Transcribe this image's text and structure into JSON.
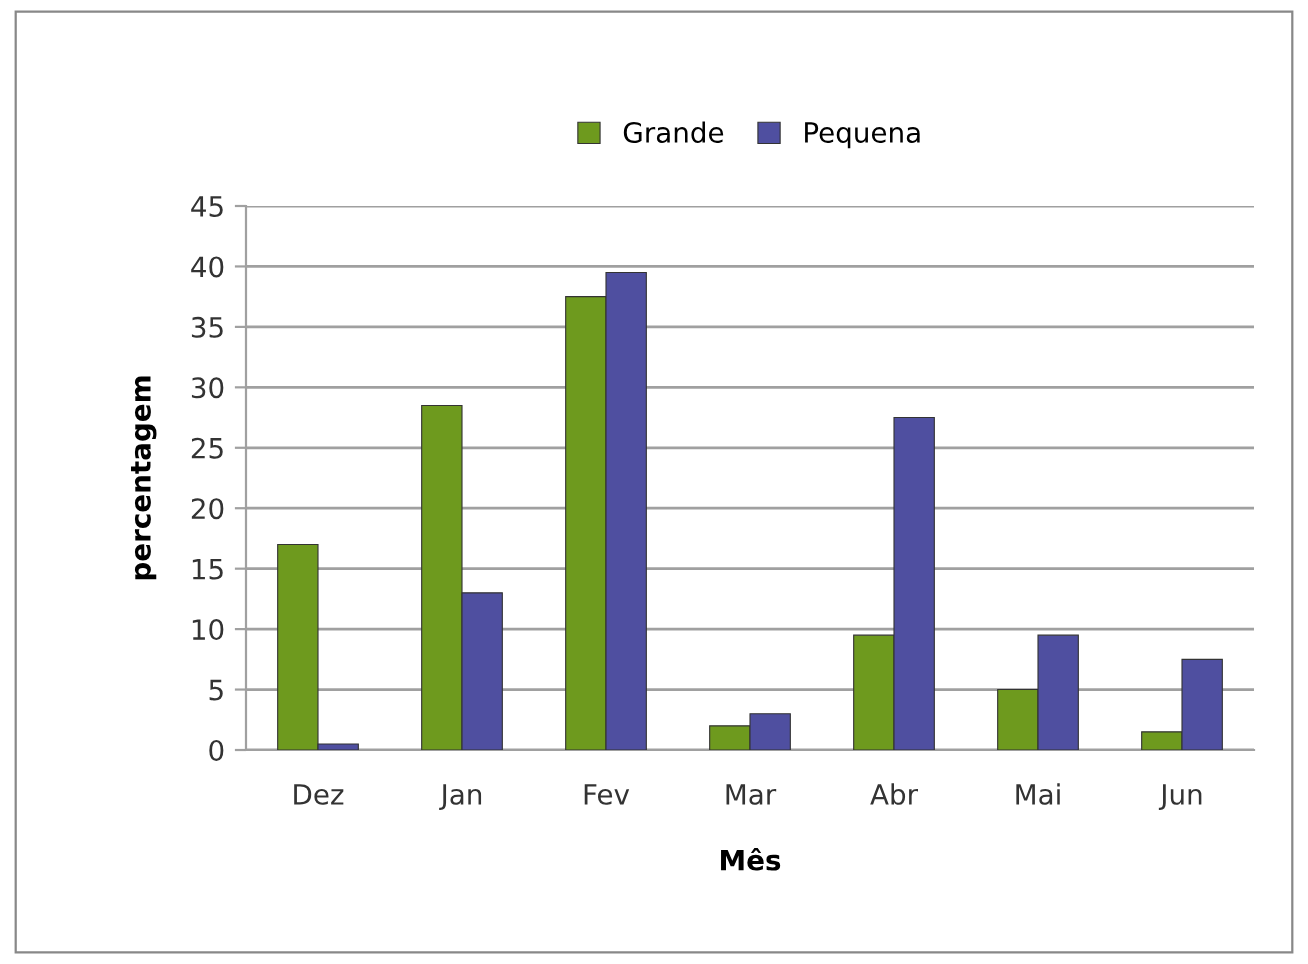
{
  "chart_data": {
    "type": "bar",
    "xlabel": "Mês",
    "ylabel": "percentagem",
    "categories": [
      "Dez",
      "Jan",
      "Fev",
      "Mar",
      "Abr",
      "Mai",
      "Jun"
    ],
    "series": [
      {
        "name": "Grande",
        "color": "#6e9a1e",
        "values": [
          17,
          28.5,
          37.5,
          2,
          9.5,
          5,
          1.5
        ]
      },
      {
        "name": "Pequena",
        "color": "#4f4fa0",
        "values": [
          0.5,
          13,
          39.5,
          3,
          27.5,
          9.5,
          7.5
        ]
      }
    ],
    "ylim": [
      0,
      45
    ],
    "yticks": [
      0,
      5,
      10,
      15,
      20,
      25,
      30,
      35,
      40,
      45
    ],
    "grid": "y",
    "legend": "top"
  }
}
